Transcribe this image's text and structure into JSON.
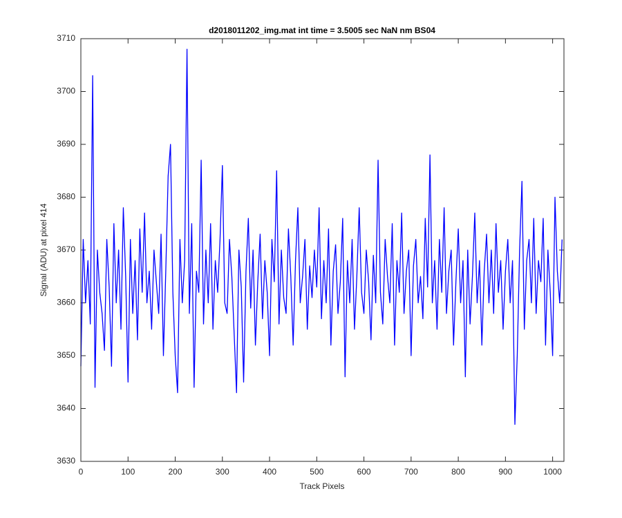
{
  "chart_data": {
    "type": "line",
    "title": "d2018011202_img.mat int time = 3.5005 sec  NaN nm BS04",
    "x_label": "Track Pixels",
    "y_label": "Signal (ADU) at pixel 414",
    "xlim": [
      0,
      1024
    ],
    "xticks": [
      0,
      100,
      200,
      300,
      400,
      500,
      600,
      700,
      800,
      900,
      1000
    ],
    "ylim": [
      3630,
      3710
    ],
    "yticks": [
      3630,
      3640,
      3650,
      3660,
      3670,
      3680,
      3690,
      3700,
      3710
    ],
    "grid": false,
    "series": [
      {
        "color": "#0000ff",
        "x": [
          0,
          5,
          10,
          15,
          20,
          25,
          30,
          35,
          40,
          45,
          50,
          55,
          60,
          65,
          70,
          75,
          80,
          85,
          90,
          95,
          100,
          105,
          110,
          115,
          120,
          125,
          130,
          135,
          140,
          145,
          150,
          155,
          160,
          165,
          170,
          175,
          180,
          185,
          190,
          195,
          200,
          205,
          210,
          215,
          220,
          225,
          230,
          235,
          240,
          245,
          250,
          255,
          260,
          265,
          270,
          275,
          280,
          285,
          290,
          295,
          300,
          305,
          310,
          315,
          320,
          325,
          330,
          335,
          340,
          345,
          350,
          355,
          360,
          365,
          370,
          375,
          380,
          385,
          390,
          395,
          400,
          405,
          410,
          415,
          420,
          425,
          430,
          435,
          440,
          445,
          450,
          455,
          460,
          465,
          470,
          475,
          480,
          485,
          490,
          495,
          500,
          505,
          510,
          515,
          520,
          525,
          530,
          535,
          540,
          545,
          550,
          555,
          560,
          565,
          570,
          575,
          580,
          585,
          590,
          595,
          600,
          605,
          610,
          615,
          620,
          625,
          630,
          635,
          640,
          645,
          650,
          655,
          660,
          665,
          670,
          675,
          680,
          685,
          690,
          695,
          700,
          705,
          710,
          715,
          720,
          725,
          730,
          735,
          740,
          745,
          750,
          755,
          760,
          765,
          770,
          775,
          780,
          785,
          790,
          795,
          800,
          805,
          810,
          815,
          820,
          825,
          830,
          835,
          840,
          845,
          850,
          855,
          860,
          865,
          870,
          875,
          880,
          885,
          890,
          895,
          900,
          905,
          910,
          915,
          920,
          925,
          930,
          935,
          940,
          945,
          950,
          955,
          960,
          965,
          970,
          975,
          980,
          985,
          990,
          995,
          1000,
          1005,
          1010,
          1015,
          1020
        ],
        "values": [
          3648,
          3672,
          3660,
          3668,
          3656,
          3703,
          3644,
          3670,
          3662,
          3658,
          3651,
          3672,
          3663,
          3648,
          3675,
          3660,
          3670,
          3655,
          3678,
          3665,
          3645,
          3672,
          3658,
          3668,
          3653,
          3674,
          3662,
          3677,
          3660,
          3666,
          3655,
          3670,
          3664,
          3658,
          3673,
          3650,
          3666,
          3684,
          3690,
          3662,
          3650,
          3643,
          3672,
          3660,
          3668,
          3708,
          3658,
          3675,
          3644,
          3666,
          3662,
          3687,
          3656,
          3670,
          3660,
          3675,
          3655,
          3668,
          3662,
          3672,
          3686,
          3660,
          3658,
          3672,
          3665,
          3654,
          3643,
          3670,
          3663,
          3645,
          3666,
          3676,
          3659,
          3670,
          3652,
          3664,
          3673,
          3657,
          3668,
          3662,
          3650,
          3672,
          3664,
          3685,
          3656,
          3670,
          3661,
          3658,
          3674,
          3665,
          3652,
          3668,
          3678,
          3660,
          3665,
          3672,
          3655,
          3667,
          3661,
          3670,
          3663,
          3678,
          3657,
          3668,
          3660,
          3674,
          3652,
          3666,
          3671,
          3658,
          3664,
          3676,
          3646,
          3668,
          3660,
          3672,
          3655,
          3665,
          3678,
          3662,
          3658,
          3670,
          3664,
          3653,
          3669,
          3660,
          3687,
          3662,
          3656,
          3672,
          3665,
          3660,
          3675,
          3652,
          3668,
          3662,
          3677,
          3658,
          3666,
          3670,
          3650,
          3667,
          3672,
          3660,
          3665,
          3657,
          3676,
          3663,
          3688,
          3660,
          3668,
          3655,
          3672,
          3662,
          3678,
          3658,
          3666,
          3670,
          3652,
          3664,
          3674,
          3660,
          3668,
          3646,
          3670,
          3656,
          3665,
          3677,
          3660,
          3668,
          3652,
          3666,
          3673,
          3660,
          3670,
          3658,
          3675,
          3662,
          3668,
          3655,
          3666,
          3672,
          3660,
          3668,
          3637,
          3650,
          3670,
          3683,
          3655,
          3668,
          3672,
          3660,
          3676,
          3658,
          3668,
          3664,
          3676,
          3652,
          3670,
          3662,
          3650,
          3680,
          3666,
          3660,
          3672
        ]
      }
    ]
  }
}
